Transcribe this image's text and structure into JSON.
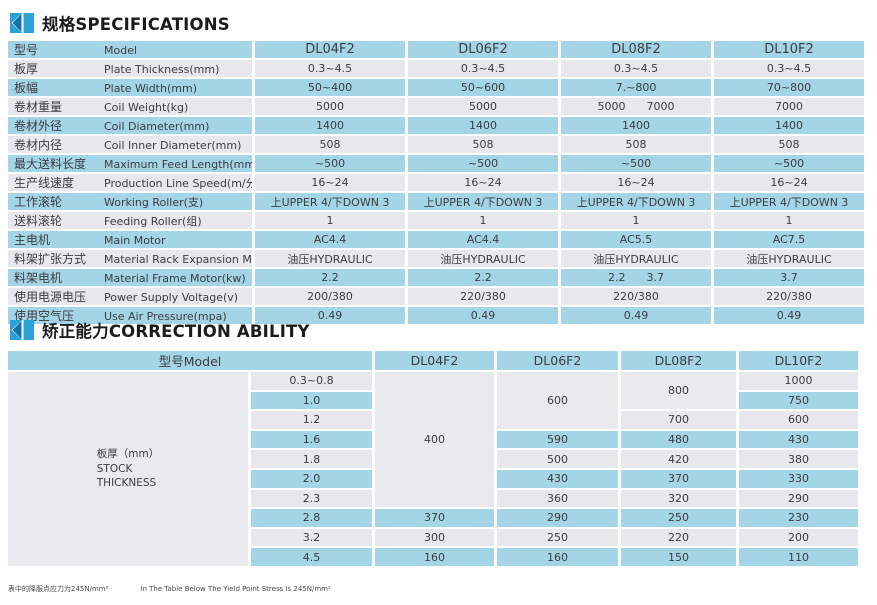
{
  "colors": {
    "row_blue": "#a3d5e7",
    "row_gray": "#e7e7ec",
    "merged_gray": "#e9e9ee",
    "icon_dark_blue": "#1571ae",
    "icon_light_blue": "#2ba1d8",
    "text": "#3c3c40"
  },
  "sections": {
    "specifications": {
      "title_zh": "规格",
      "title_en": "SPECIFICATIONS"
    },
    "correction": {
      "title_zh": "矫正能力",
      "title_en": "CORRECTION ABILITY"
    }
  },
  "spec_table": {
    "header": {
      "zh": "型号",
      "en": "Model"
    },
    "models": [
      "DL04F2",
      "DL06F2",
      "DL08F2",
      "DL10F2"
    ],
    "rows": [
      {
        "zh": "板厚",
        "en": "Plate Thickness(mm)",
        "values": [
          "0.3~4.5",
          "0.3~4.5",
          "0.3~4.5",
          "0.3~4.5"
        ]
      },
      {
        "zh": "板幅",
        "en": "Plate Width(mm)",
        "values": [
          "50~400",
          "50~600",
          "7.~800",
          "70~800"
        ]
      },
      {
        "zh": "卷材重量",
        "en": "Coil Weight(kg)",
        "values": [
          "5000",
          "5000",
          "5000      7000",
          "7000"
        ]
      },
      {
        "zh": "卷材外径",
        "en": "Coil Diameter(mm)",
        "values": [
          "1400",
          "1400",
          "1400",
          "1400"
        ]
      },
      {
        "zh": "卷材内径",
        "en": "Coil Inner Diameter(mm)",
        "values": [
          "508",
          "508",
          "508",
          "508"
        ]
      },
      {
        "zh": "最大送料长度",
        "en": "Maximum Feed Length(mm)",
        "values": [
          "~500",
          "~500",
          "~500",
          "~500"
        ]
      },
      {
        "zh": "生产线速度",
        "en": "Production Line Speed(m/分)",
        "values": [
          "16~24",
          "16~24",
          "16~24",
          "16~24"
        ]
      },
      {
        "zh": "工作滚轮",
        "en": "Working Roller(支)",
        "values": [
          "上UPPER 4/下DOWN 3",
          "上UPPER 4/下DOWN 3",
          "上UPPER 4/下DOWN 3",
          "上UPPER 4/下DOWN 3"
        ]
      },
      {
        "zh": "送料滚轮",
        "en": "Feeding Roller(组)",
        "values": [
          "1",
          "1",
          "1",
          "1"
        ]
      },
      {
        "zh": "主电机",
        "en": "Main Motor",
        "values": [
          "AC4.4",
          "AC4.4",
          "AC5.5",
          "AC7.5"
        ]
      },
      {
        "zh": "料架扩张方式",
        "en": "Material Rack Expansion Mode",
        "values": [
          "油压HYDRAULIC",
          "油压HYDRAULIC",
          "油压HYDRAULIC",
          "油压HYDRAULIC"
        ]
      },
      {
        "zh": "料架电机",
        "en": "Material Frame Motor(kw)",
        "values": [
          "2.2",
          "2.2",
          "2.2      3.7",
          "3.7"
        ]
      },
      {
        "zh": "使用电源电压",
        "en": "Power Supply Voltage(v)",
        "values": [
          "200/380",
          "220/380",
          "220/380",
          "220/380"
        ]
      },
      {
        "zh": "使用空气压",
        "en": "Use Air Pressure(mpa)",
        "values": [
          "0.49",
          "0.49",
          "0.49",
          "0.49"
        ]
      }
    ]
  },
  "correction_table": {
    "header_label": "型号Model",
    "models": [
      "DL04F2",
      "DL06F2",
      "DL08F2",
      "DL10F2"
    ],
    "stock_label": {
      "zh": "板厚（mm）",
      "en_line1": "STOCK",
      "en_line2": "THICKNESS"
    },
    "thicknesses": [
      "0.3~0.8",
      "1.0",
      "1.2",
      "1.6",
      "1.8",
      "2.0",
      "2.3",
      "2.8",
      "3.2",
      "4.5"
    ],
    "columns": [
      {
        "model": "DL04F2",
        "cells": [
          {
            "value": "400",
            "rowspan": 7
          },
          {
            "value": "370"
          },
          {
            "value": "300"
          },
          {
            "value": "160"
          }
        ]
      },
      {
        "model": "DL06F2",
        "cells": [
          {
            "value": "600",
            "rowspan": 3
          },
          {
            "value": "590"
          },
          {
            "value": "500"
          },
          {
            "value": "430"
          },
          {
            "value": "360"
          },
          {
            "value": "290"
          },
          {
            "value": "250"
          },
          {
            "value": "160"
          }
        ]
      },
      {
        "model": "DL08F2",
        "cells": [
          {
            "value": "800",
            "rowspan": 2
          },
          {
            "value": "700"
          },
          {
            "value": "480"
          },
          {
            "value": "420"
          },
          {
            "value": "370"
          },
          {
            "value": "320"
          },
          {
            "value": "250"
          },
          {
            "value": "220"
          },
          {
            "value": "150"
          }
        ]
      },
      {
        "model": "DL10F2",
        "cells": [
          {
            "value": "1000"
          },
          {
            "value": "750"
          },
          {
            "value": "600"
          },
          {
            "value": "430"
          },
          {
            "value": "380"
          },
          {
            "value": "330"
          },
          {
            "value": "290"
          },
          {
            "value": "230"
          },
          {
            "value": "200"
          },
          {
            "value": "110"
          }
        ]
      }
    ]
  },
  "footnote": {
    "zh": "表中的降服点应力为245N/mm²",
    "en": "In The Table Below The Yield Point Stress Is 245N/mm²"
  }
}
